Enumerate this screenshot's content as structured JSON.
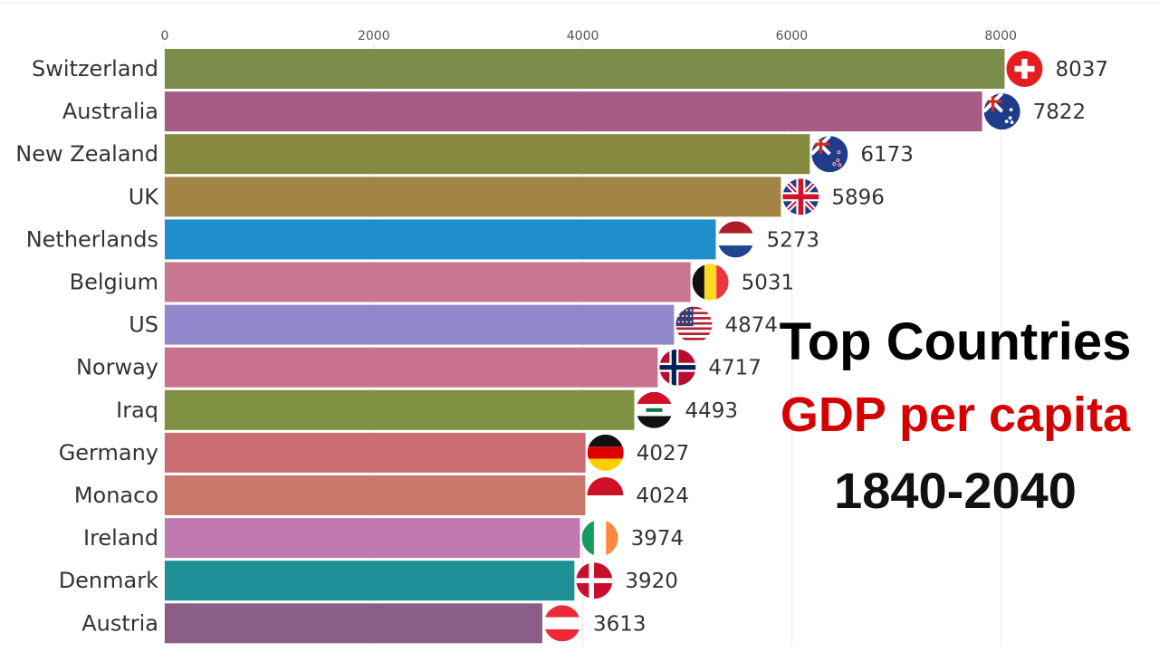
{
  "chart_data": {
    "type": "bar",
    "orientation": "horizontal",
    "title": "Top Countries",
    "subtitle": "GDP per capita",
    "period": "1840-2040",
    "xlim": [
      0,
      8500
    ],
    "x_ticks": [
      0,
      2000,
      4000,
      6000,
      8000
    ],
    "grid": true,
    "categories": [
      "Switzerland",
      "Australia",
      "New Zealand",
      "UK",
      "Netherlands",
      "Belgium",
      "US",
      "Norway",
      "Iraq",
      "Germany",
      "Monaco",
      "Ireland",
      "Denmark",
      "Austria"
    ],
    "values": [
      8037,
      7822,
      6173,
      5896,
      5273,
      5031,
      4874,
      4717,
      4493,
      4027,
      4024,
      3974,
      3920,
      3613
    ],
    "value_labels": [
      "8037",
      "7822",
      "6173",
      "5896",
      "5273",
      "5031",
      "4874",
      "4717",
      "4493",
      "4027",
      "4024",
      "3974",
      "3920",
      "3613"
    ],
    "colors": [
      "#7c8c4a",
      "#a65c84",
      "#858a3e",
      "#a38445",
      "#1f8fcc",
      "#c97690",
      "#9188cc",
      "#c9728e",
      "#7f9140",
      "#cc6d74",
      "#c9776a",
      "#c07ab0",
      "#1f9196",
      "#8a5e86"
    ],
    "flag_icons": [
      "flag-switzerland-icon",
      "flag-australia-icon",
      "flag-new-zealand-icon",
      "flag-uk-icon",
      "flag-netherlands-icon",
      "flag-belgium-icon",
      "flag-us-icon",
      "flag-norway-icon",
      "flag-iraq-icon",
      "flag-germany-icon",
      "flag-monaco-icon",
      "flag-ireland-icon",
      "flag-denmark-icon",
      "flag-austria-icon"
    ]
  }
}
